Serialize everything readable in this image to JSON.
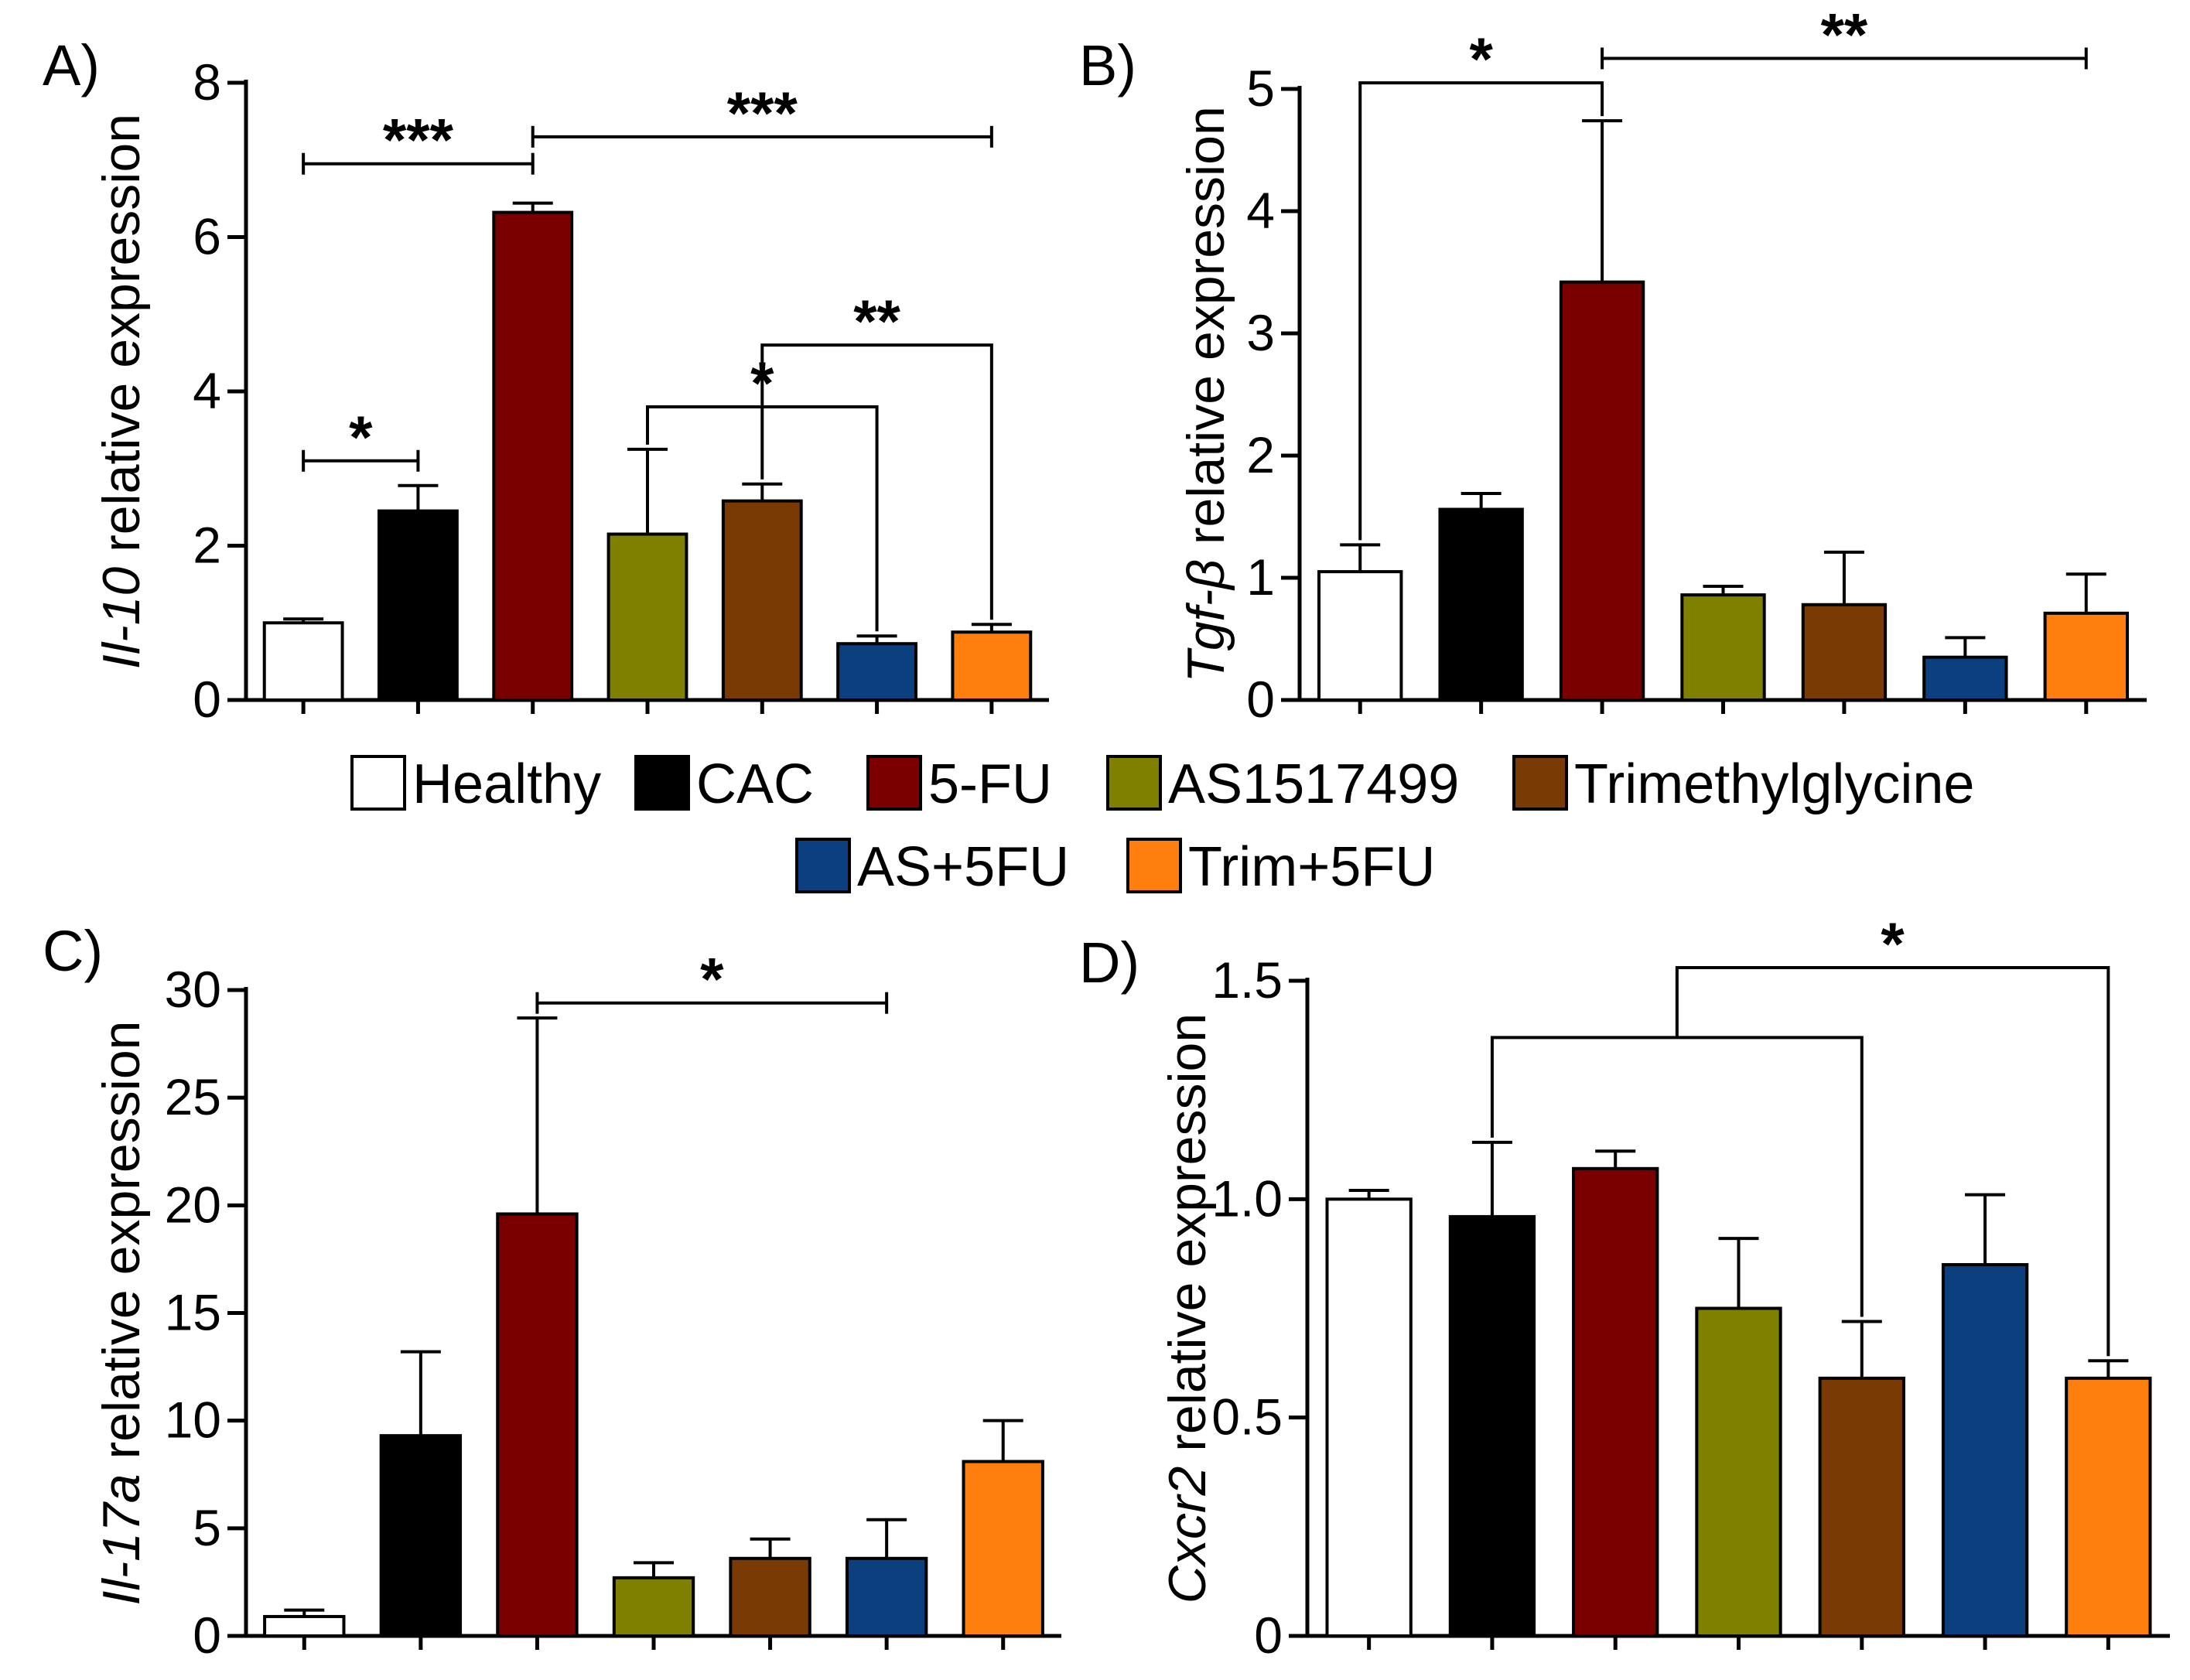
{
  "legend": [
    {
      "label": "Healthy",
      "color": "#ffffff"
    },
    {
      "label": "CAC",
      "color": "#000000"
    },
    {
      "label": "5-FU",
      "color": "#7a0000"
    },
    {
      "label": "AS1517499",
      "color": "#7f7f00"
    },
    {
      "label": "Trimethylglycine",
      "color": "#7a3a04"
    },
    {
      "label": "AS+5FU",
      "color": "#0b3f7e"
    },
    {
      "label": "Trim+5FU",
      "color": "#ff7f0e"
    }
  ],
  "chart_data": [
    {
      "type": "bar",
      "panel": "A)",
      "ylabel_gene": "Il-10",
      "ylabel_rest": " relative expression",
      "categories": [
        "Healthy",
        "CAC",
        "5-FU",
        "AS1517499",
        "Trimethylglycine",
        "AS+5FU",
        "Trim+5FU"
      ],
      "values": [
        1.0,
        2.45,
        6.32,
        2.15,
        2.58,
        0.73,
        0.88
      ],
      "errors": [
        0.05,
        0.33,
        0.12,
        1.1,
        0.22,
        0.1,
        0.1
      ],
      "ylim": [
        0,
        8
      ],
      "yticks": [
        "0",
        "2",
        "4",
        "6",
        "8"
      ],
      "significance": [
        {
          "from": 0,
          "to": 1,
          "y": 3.1,
          "label": "*",
          "style": "bracket"
        },
        {
          "from": 0,
          "to": 2,
          "y": 6.95,
          "label": "***",
          "style": "bracket"
        },
        {
          "from": 2,
          "to": 6,
          "y": 7.3,
          "label": "***",
          "style": "bracket"
        },
        {
          "from": 3,
          "to": 5,
          "y": 3.8,
          "label": "*",
          "style": "drop"
        },
        {
          "from": 4,
          "to": 6,
          "y": 4.6,
          "label": "**",
          "style": "drop"
        }
      ]
    },
    {
      "type": "bar",
      "panel": "B)",
      "ylabel_gene": "Tgf-β",
      "ylabel_rest": " relative expression",
      "categories": [
        "Healthy",
        "CAC",
        "5-FU",
        "AS1517499",
        "Trimethylglycine",
        "AS+5FU",
        "Trim+5FU"
      ],
      "values": [
        1.05,
        1.56,
        3.42,
        0.86,
        0.78,
        0.35,
        0.71
      ],
      "errors": [
        0.22,
        0.13,
        1.32,
        0.07,
        0.43,
        0.16,
        0.32
      ],
      "ylim": [
        0,
        5
      ],
      "yticks": [
        "0",
        "1",
        "2",
        "3",
        "4",
        "5"
      ],
      "significance": [
        {
          "from": 0,
          "to": 2,
          "y": 5.05,
          "label": "*",
          "style": "drop"
        },
        {
          "from": 2,
          "to": 6,
          "y": 5.25,
          "label": "**",
          "style": "bracket"
        }
      ]
    },
    {
      "type": "bar",
      "panel": "C)",
      "ylabel_gene": "Il-17a",
      "ylabel_rest": " relative expression",
      "categories": [
        "Healthy",
        "CAC",
        "5-FU",
        "AS1517499",
        "Trimethylglycine",
        "AS+5FU",
        "Trim+5FU"
      ],
      "values": [
        0.9,
        9.3,
        19.6,
        2.7,
        3.6,
        3.6,
        8.1
      ],
      "errors": [
        0.3,
        3.9,
        9.1,
        0.7,
        0.9,
        1.8,
        1.9
      ],
      "ylim": [
        0,
        30
      ],
      "yticks": [
        "0",
        "5",
        "10",
        "15",
        "20",
        "25",
        "30"
      ],
      "significance": [
        {
          "from": 2,
          "to": 5,
          "y": 29.4,
          "label": "*",
          "style": "bracket"
        }
      ]
    },
    {
      "type": "bar",
      "panel": "D)",
      "ylabel_gene": "Cxcr2",
      "ylabel_rest": " relative expression",
      "categories": [
        "Healthy",
        "CAC",
        "5-FU",
        "AS1517499",
        "Trimethylglycine",
        "AS+5FU",
        "Trim+5FU"
      ],
      "values": [
        1.0,
        0.96,
        1.07,
        0.75,
        0.59,
        0.85,
        0.59
      ],
      "errors": [
        0.02,
        0.17,
        0.04,
        0.16,
        0.13,
        0.16,
        0.04
      ],
      "ylim": [
        0,
        1.5
      ],
      "yticks": [
        "0",
        "0.5",
        "1.0",
        "1.5"
      ],
      "significance": [
        {
          "from": 1,
          "to": 4,
          "y": 1.37,
          "label": "",
          "style": "drop"
        },
        {
          "from": 1,
          "to": 6,
          "y": 1.53,
          "label": "*",
          "style": "nested"
        }
      ]
    }
  ]
}
